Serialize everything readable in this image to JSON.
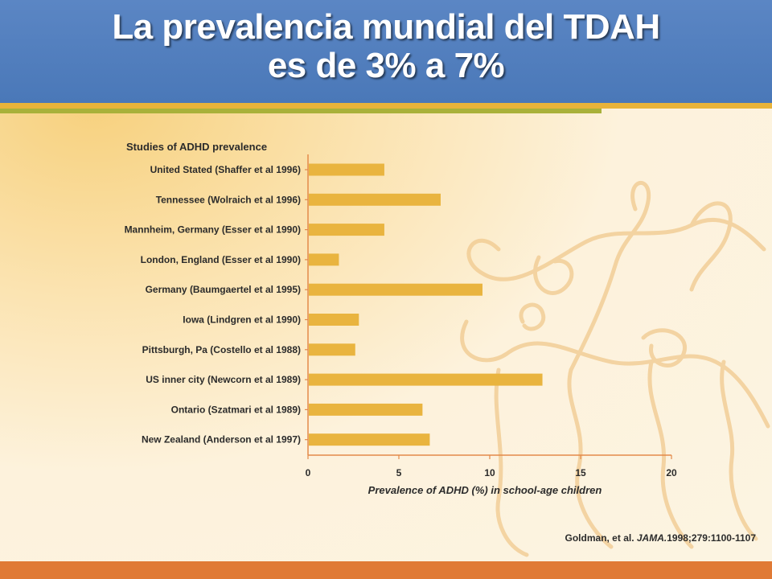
{
  "slide": {
    "title_line1": "La prevalencia mundial del TDAH",
    "title_line2": "es de 3% a 7%",
    "citation_prefix": "Goldman, et al. ",
    "citation_journal": "JAMA.",
    "citation_suffix": "1998;279:1100-1107"
  },
  "colors": {
    "header": "#4f7dbd",
    "bar": "#e9b43f",
    "axis": "#e38a4a",
    "stripe_gold": "#e8b33a",
    "stripe_green": "#a9b13a",
    "footer": "#e07a35"
  },
  "chart_data": {
    "type": "bar",
    "orientation": "horizontal",
    "title": "Studies of ADHD prevalence",
    "xlabel": "Prevalence of ADHD (%) in school-age children",
    "ylabel": "",
    "xlim": [
      0,
      20
    ],
    "xticks": [
      0,
      5,
      10,
      15,
      20
    ],
    "grid": false,
    "categories": [
      "United Stated (Shaffer et al 1996)",
      "Tennessee (Wolraich et al 1996)",
      "Mannheim, Germany (Esser et al 1990)",
      "London, England (Esser et al 1990)",
      "Germany (Baumgaertel et al 1995)",
      "Iowa (Lindgren et al 1990)",
      "Pittsburgh, Pa (Costello et al 1988)",
      "US inner city (Newcorn et al 1989)",
      "Ontario (Szatmari et al 1989)",
      "New Zealand (Anderson et al 1997)"
    ],
    "values": [
      4.2,
      7.3,
      4.2,
      1.7,
      9.6,
      2.8,
      2.6,
      12.9,
      6.3,
      6.7
    ]
  }
}
